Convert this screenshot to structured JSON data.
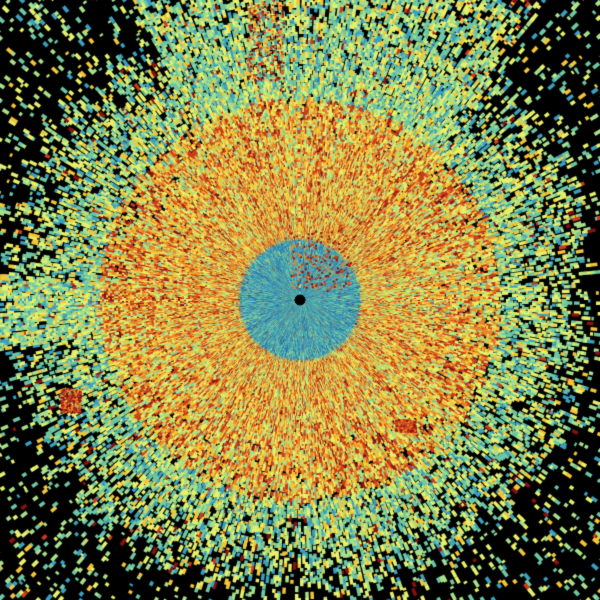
{
  "image": {
    "kind": "radar-sweep",
    "background_color": "#000000",
    "colormap": [
      "#08306b",
      "#1f6fb4",
      "#3a9fc0",
      "#6cc7a4",
      "#a8e08a",
      "#e6f06a",
      "#f5c534",
      "#e8862a",
      "#cc3a1c",
      "#8a1010"
    ],
    "center_marker_color": "#000000"
  }
}
